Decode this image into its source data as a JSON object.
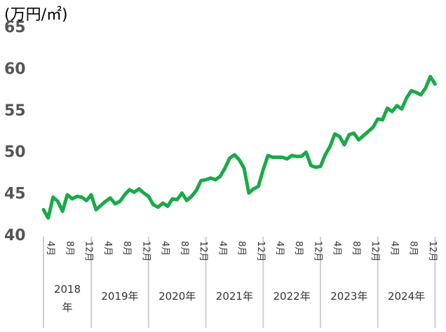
{
  "chart_data": {
    "type": "line",
    "unit_label": "(万円/㎡)",
    "ylim": [
      40,
      65
    ],
    "yticks": [
      "40",
      "45",
      "50",
      "55",
      "60",
      "65"
    ],
    "grid": false,
    "legend": "none",
    "line_color": "#1aaa48",
    "separator_color": "#cfcfcf",
    "month_ticks": [
      {
        "label": "4月",
        "index": 2
      },
      {
        "label": "8月",
        "index": 6
      },
      {
        "label": "12月",
        "index": 10
      },
      {
        "label": "4月",
        "index": 14
      },
      {
        "label": "8月",
        "index": 18
      },
      {
        "label": "12月",
        "index": 22
      },
      {
        "label": "4月",
        "index": 26
      },
      {
        "label": "8月",
        "index": 30
      },
      {
        "label": "12月",
        "index": 34
      },
      {
        "label": "4月",
        "index": 38
      },
      {
        "label": "8月",
        "index": 42
      },
      {
        "label": "12月",
        "index": 46
      },
      {
        "label": "4月",
        "index": 50
      },
      {
        "label": "8月",
        "index": 54
      },
      {
        "label": "12月",
        "index": 58
      },
      {
        "label": "4月",
        "index": 62
      },
      {
        "label": "8月",
        "index": 66
      },
      {
        "label": "12月",
        "index": 70
      },
      {
        "label": "4月",
        "index": 74
      },
      {
        "label": "8月",
        "index": 78
      },
      {
        "label": "12月",
        "index": 82
      }
    ],
    "years": [
      {
        "label": "2018\n年",
        "start": 0,
        "end": 10
      },
      {
        "label": "2019年",
        "start": 10,
        "end": 22
      },
      {
        "label": "2020年",
        "start": 22,
        "end": 34
      },
      {
        "label": "2021年",
        "start": 34,
        "end": 46
      },
      {
        "label": "2022年",
        "start": 46,
        "end": 58
      },
      {
        "label": "2023年",
        "start": 58,
        "end": 70
      },
      {
        "label": "2024年",
        "start": 70,
        "end": 82
      }
    ],
    "series": [
      {
        "values": [
          43.0,
          42.0,
          44.5,
          44.0,
          42.8,
          44.8,
          44.3,
          44.6,
          44.5,
          44.1,
          44.8,
          43.0,
          43.5,
          44.0,
          44.4,
          43.7,
          44.0,
          44.8,
          45.4,
          45.1,
          45.5,
          45.0,
          44.6,
          43.6,
          43.3,
          43.8,
          43.4,
          44.3,
          44.2,
          45.0,
          44.1,
          44.6,
          45.3,
          46.5,
          46.6,
          46.8,
          46.6,
          47.0,
          48.0,
          49.2,
          49.6,
          49.0,
          48.0,
          45.0,
          45.5,
          45.8,
          47.8,
          49.5,
          49.3,
          49.3,
          49.3,
          49.1,
          49.5,
          49.4,
          49.4,
          49.9,
          48.3,
          48.1,
          48.2,
          49.6,
          50.6,
          52.1,
          51.8,
          50.8,
          52.0,
          52.2,
          51.4,
          51.9,
          52.4,
          52.9,
          53.9,
          53.8,
          55.2,
          54.8,
          55.5,
          55.1,
          56.4,
          57.3,
          57.1,
          56.8,
          57.6,
          59.0,
          58.1
        ]
      }
    ]
  }
}
